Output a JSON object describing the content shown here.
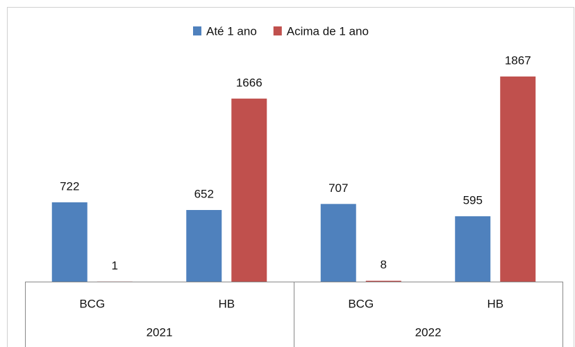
{
  "chart_data": {
    "type": "bar",
    "categories": [
      "BCG",
      "HB",
      "BCG",
      "HB"
    ],
    "groups": [
      "2021",
      "2022"
    ],
    "series": [
      {
        "name": "Até 1 ano",
        "color": "#4f81bd",
        "values": [
          722,
          652,
          707,
          595
        ]
      },
      {
        "name": "Acima de 1 ano",
        "color": "#c0504d",
        "values": [
          1,
          1666,
          8,
          1867
        ]
      }
    ],
    "ylim": [
      0,
      2500
    ],
    "legend": "top"
  }
}
